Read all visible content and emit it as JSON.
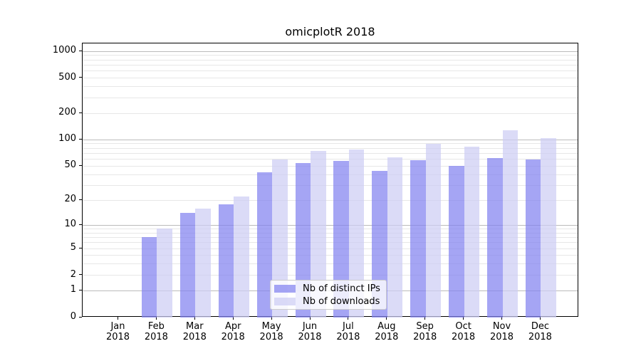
{
  "title": "omicplotR 2018",
  "chart_data": {
    "type": "bar",
    "title": "omicplotR 2018",
    "categories": [
      "Jan",
      "Feb",
      "Mar",
      "Apr",
      "May",
      "Jun",
      "Jul",
      "Aug",
      "Sep",
      "Oct",
      "Nov",
      "Dec"
    ],
    "category_year": "2018",
    "series": [
      {
        "name": "Nb of distinct IPs",
        "color": "#8282f0",
        "alpha": 0.72,
        "values": [
          0,
          7,
          14,
          18,
          42,
          54,
          57,
          44,
          58,
          50,
          62,
          60
        ]
      },
      {
        "name": "Nb of downloads",
        "color": "#cdcdf4",
        "alpha": 0.72,
        "values": [
          0,
          9,
          16,
          22,
          59,
          75,
          78,
          63,
          90,
          83,
          127,
          104
        ]
      }
    ],
    "yticks": [
      0,
      1,
      2,
      5,
      10,
      20,
      50,
      100,
      200,
      500,
      1000
    ],
    "scale": "log1p",
    "ylim": [
      0,
      1230
    ],
    "grid": true,
    "major_gridlines": [
      1,
      10,
      100,
      1000
    ],
    "legend_position": "lower-center",
    "xlabel": "",
    "ylabel": ""
  },
  "colors": {
    "axis": "#000000",
    "grid_minor": "#e7e7e7",
    "grid_major": "#bbbbbb",
    "background": "#ffffff"
  }
}
